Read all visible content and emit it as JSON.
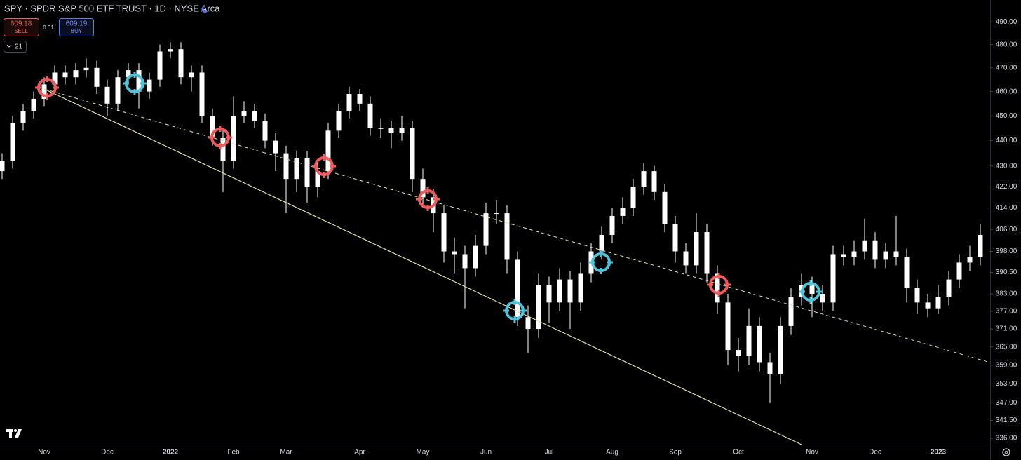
{
  "chart_data": {
    "type": "candlestick",
    "title": "SPY · SPDR S&P 500 ETF TRUST · 1D · NYSE Arca",
    "sell_price": "609.18",
    "sell_label": "SELL",
    "spread": "0.01",
    "buy_price": "609.19",
    "buy_label": "BUY",
    "indicator_count": "21",
    "log_scale": true,
    "color": "#ffffff",
    "categories": [
      null,
      null,
      null,
      null,
      "Nov",
      null,
      null,
      null,
      null,
      null,
      "Dec",
      null,
      null,
      null,
      null,
      null,
      "2022",
      null,
      null,
      null,
      null,
      null,
      "Feb",
      null,
      null,
      null,
      null,
      "Mar",
      null,
      null,
      null,
      null,
      null,
      null,
      "Apr",
      null,
      null,
      null,
      null,
      null,
      "May",
      null,
      null,
      null,
      null,
      null,
      "Jun",
      null,
      null,
      null,
      null,
      null,
      "Jul",
      null,
      null,
      null,
      null,
      null,
      "Aug",
      null,
      null,
      null,
      null,
      null,
      "Sep",
      null,
      null,
      null,
      null,
      null,
      "Oct",
      null,
      null,
      null,
      null,
      null,
      null,
      "Nov",
      null,
      null,
      null,
      null,
      null,
      "Dec",
      null,
      null,
      null,
      null,
      null,
      "2023",
      null,
      null,
      null,
      null
    ],
    "open": [
      428,
      432,
      447,
      452,
      457,
      463,
      468,
      466,
      469,
      470,
      462,
      455,
      466,
      469,
      460,
      465,
      477,
      478,
      466,
      468,
      450,
      441,
      432,
      450,
      452,
      448,
      440,
      435,
      425,
      433,
      422,
      428,
      444,
      452,
      459,
      455,
      445,
      445,
      443,
      445,
      425,
      418,
      412,
      398,
      397,
      392,
      400,
      412,
      412,
      395,
      375,
      371,
      386,
      380,
      388,
      380,
      390,
      398,
      404,
      411,
      414,
      422,
      428,
      420,
      408,
      398,
      393,
      405,
      390,
      380,
      364,
      362,
      372,
      360,
      356,
      372,
      382,
      386,
      383,
      380,
      397,
      396,
      398,
      402,
      395,
      398,
      396,
      385,
      380,
      378,
      382,
      388,
      394,
      396
    ],
    "high": [
      435,
      450,
      455,
      460,
      466,
      471,
      471,
      472,
      474,
      473,
      465,
      469,
      472,
      472,
      468,
      480,
      481,
      481,
      471,
      471,
      453,
      444,
      458,
      456,
      455,
      451,
      443,
      438,
      436,
      436,
      431,
      447,
      455,
      462,
      461,
      458,
      449,
      448,
      450,
      448,
      429,
      421,
      415,
      403,
      400,
      404,
      416,
      417,
      415,
      398,
      379,
      390,
      389,
      392,
      391,
      394,
      401,
      407,
      414,
      418,
      425,
      431,
      430,
      423,
      411,
      401,
      412,
      408,
      393,
      383,
      368,
      378,
      375,
      363,
      375,
      385,
      390,
      389,
      386,
      400,
      400,
      402,
      410,
      405,
      401,
      411,
      399,
      388,
      383,
      386,
      391,
      397,
      400,
      408
    ],
    "low": [
      425,
      429,
      444,
      449,
      454,
      460,
      463,
      463,
      466,
      459,
      450,
      452,
      463,
      453,
      457,
      462,
      474,
      463,
      460,
      447,
      438,
      420,
      429,
      447,
      445,
      437,
      428,
      412,
      420,
      416,
      418,
      425,
      441,
      449,
      452,
      442,
      441,
      437,
      440,
      420,
      414,
      405,
      394,
      390,
      378,
      389,
      397,
      408,
      390,
      372,
      363,
      368,
      373,
      377,
      371,
      377,
      387,
      395,
      401,
      408,
      411,
      419,
      417,
      405,
      394,
      390,
      390,
      387,
      376,
      359,
      357,
      359,
      357,
      347,
      353,
      369,
      379,
      375,
      377,
      377,
      393,
      393,
      395,
      392,
      392,
      393,
      380,
      376,
      375,
      376,
      379,
      385,
      391,
      393
    ],
    "close": [
      432,
      447,
      452,
      457,
      463,
      468,
      466,
      469,
      470,
      462,
      455,
      466,
      469,
      460,
      465,
      477,
      478,
      466,
      468,
      450,
      441,
      432,
      450,
      452,
      448,
      440,
      435,
      425,
      433,
      422,
      428,
      444,
      452,
      459,
      455,
      445,
      445,
      443,
      445,
      425,
      418,
      412,
      398,
      397,
      392,
      400,
      412,
      412,
      395,
      375,
      371,
      386,
      380,
      388,
      380,
      390,
      398,
      404,
      411,
      414,
      422,
      428,
      420,
      408,
      398,
      393,
      405,
      390,
      380,
      364,
      362,
      372,
      360,
      356,
      372,
      382,
      386,
      383,
      380,
      397,
      396,
      398,
      402,
      395,
      398,
      396,
      385,
      380,
      378,
      382,
      388,
      394,
      396,
      404
    ],
    "ylim": [
      334.1,
      499.8
    ],
    "yticks": [
      {
        "value": 490,
        "label": "490.00"
      },
      {
        "value": 480,
        "label": "480.00"
      },
      {
        "value": 470,
        "label": "470.00"
      },
      {
        "value": 460,
        "label": "460.00"
      },
      {
        "value": 450,
        "label": "450.00"
      },
      {
        "value": 440,
        "label": "440.00"
      },
      {
        "value": 430,
        "label": "430.00"
      },
      {
        "value": 422,
        "label": "422.00"
      },
      {
        "value": 414,
        "label": "414.00"
      },
      {
        "value": 406,
        "label": "406.00"
      },
      {
        "value": 398,
        "label": "398.00"
      },
      {
        "value": 390.5,
        "label": "390.50"
      },
      {
        "value": 383,
        "label": "383.00"
      },
      {
        "value": 377,
        "label": "377.00"
      },
      {
        "value": 371,
        "label": "371.00"
      },
      {
        "value": 365,
        "label": "365.00"
      },
      {
        "value": 359,
        "label": "359.00"
      },
      {
        "value": 353,
        "label": "353.00"
      },
      {
        "value": 347,
        "label": "347.00"
      },
      {
        "value": 341.5,
        "label": "341.50"
      },
      {
        "value": 336,
        "label": "336.00"
      }
    ]
  }
}
